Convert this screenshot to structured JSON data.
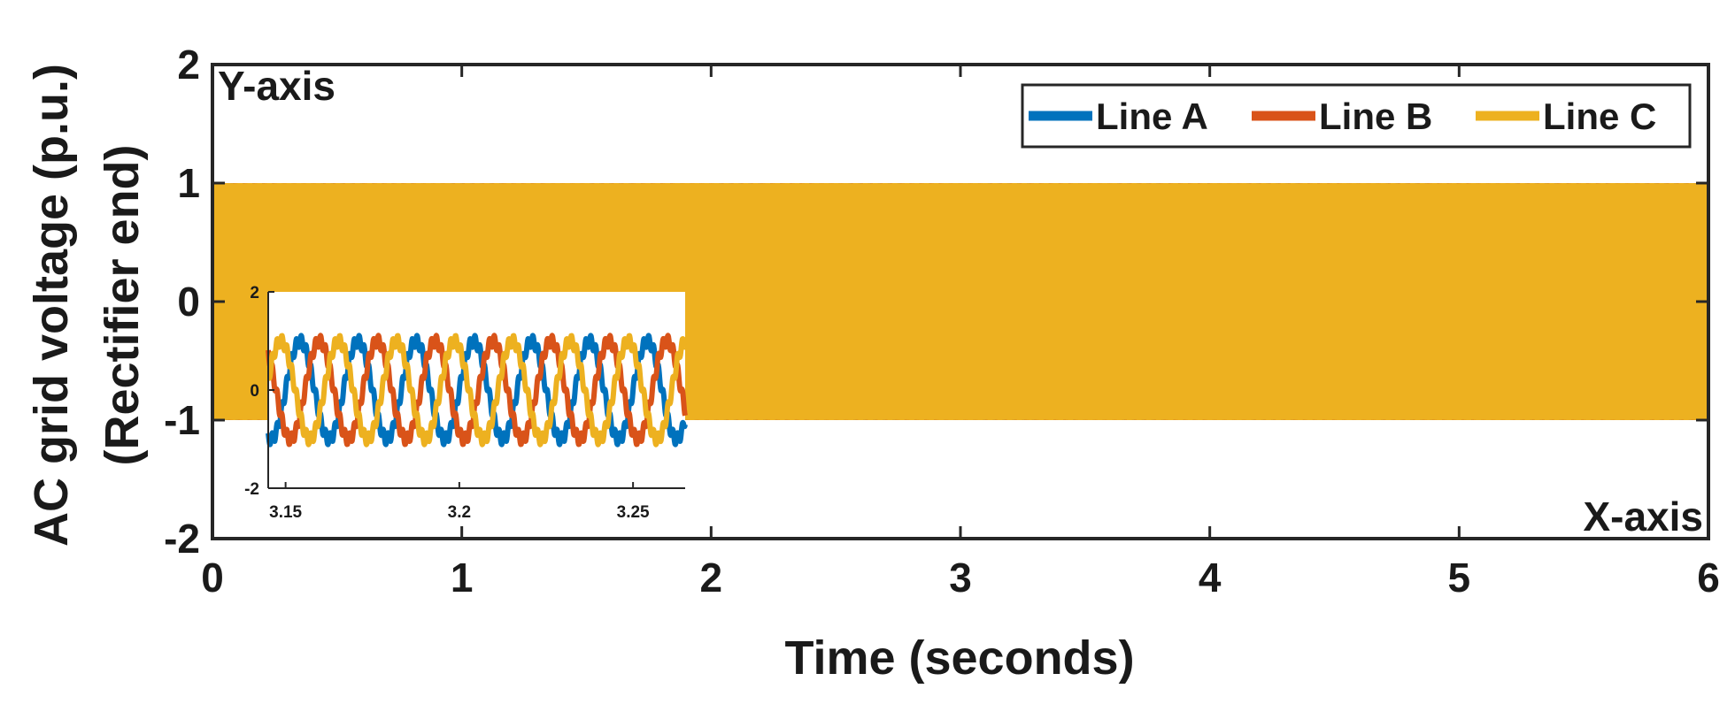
{
  "chart_data": [
    {
      "type": "line",
      "id": "main",
      "title": "",
      "xlabel": "Time (seconds)",
      "ylabel_lines": [
        "AC grid voltage (p.u.)",
        "(Rectifier end)"
      ],
      "corner_labels": {
        "top_left": "Y-axis",
        "bottom_right": "X-axis"
      },
      "xlim": [
        0,
        6
      ],
      "ylim": [
        -2,
        2
      ],
      "x_ticks": [
        0,
        1,
        2,
        3,
        4,
        5,
        6
      ],
      "y_ticks": [
        -2,
        -1,
        0,
        1,
        2
      ],
      "legend": {
        "position": "top-right",
        "orientation": "horizontal"
      },
      "frequency_hz": 60,
      "series": [
        {
          "name": "Line A",
          "amplitude": 1.0,
          "phase_deg": 0,
          "color": "#0072BD"
        },
        {
          "name": "Line B",
          "amplitude": 1.0,
          "phase_deg": -120,
          "color": "#D95319"
        },
        {
          "name": "Line C",
          "amplitude": 1.0,
          "phase_deg": 120,
          "color": "#EDB120"
        }
      ]
    },
    {
      "type": "line",
      "id": "inset",
      "title": "",
      "xlabel": "",
      "ylabel": "",
      "xlim": [
        3.145,
        3.265
      ],
      "ylim": [
        -2,
        2
      ],
      "x_ticks": [
        3.15,
        3.2,
        3.25
      ],
      "y_ticks": [
        -2,
        0,
        2
      ],
      "frequency_hz": 60,
      "ripple_amplitude": 0.12,
      "series": [
        {
          "name": "Line A",
          "amplitude": 1.0,
          "phase_deg": 0,
          "color": "#0072BD"
        },
        {
          "name": "Line B",
          "amplitude": 1.0,
          "phase_deg": -120,
          "color": "#D95319"
        },
        {
          "name": "Line C",
          "amplitude": 1.0,
          "phase_deg": 120,
          "color": "#EDB120"
        }
      ]
    }
  ]
}
